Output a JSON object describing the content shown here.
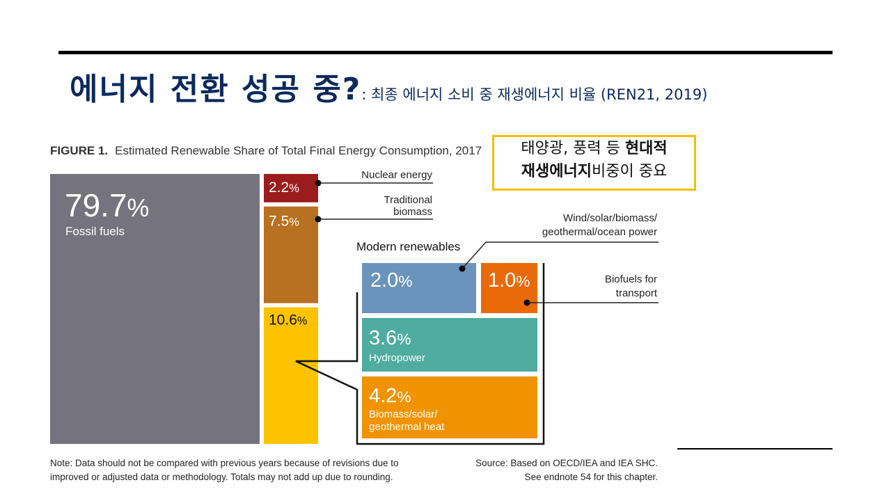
{
  "slide": {
    "title_main": "에너지 전환 성공 중?",
    "title_sub": ": 최종 에너지 소비 중 재생에너지 비율 (REN21, 2019)",
    "callout_line1_regular": "태양광, 풍력 등 ",
    "callout_line1_bold": "현대적",
    "callout_line2_bold": "재생에너지",
    "callout_line2_regular": "비중이 중요"
  },
  "figure": {
    "label": "FIGURE 1.",
    "title": "Estimated Renewable Share of Total Final Energy Consumption, 2017",
    "note_line1": "Note: Data should not be compared with previous years because of revisions due to",
    "note_line2": "improved or adjusted data or methodology. Totals may not add up due to rounding.",
    "source_line1": "Source: Based on OECD/IEA and IEA SHC.",
    "source_line2": "See endnote 54 for this chapter."
  },
  "chart_data": {
    "type": "treemap",
    "title": "Estimated Renewable Share of Total Final Energy Consumption, 2017",
    "unit": "%",
    "items": [
      {
        "key": "fossil",
        "name": "Fossil fuels",
        "value": 79.7,
        "label": "79.7",
        "color": "#75737d"
      },
      {
        "key": "nuclear",
        "name": "Nuclear energy",
        "value": 2.2,
        "label": "2.2",
        "color": "#9b1c1c"
      },
      {
        "key": "traditional",
        "name": "Traditional biomass",
        "value": 7.5,
        "label": "7.5",
        "color": "#b87021"
      },
      {
        "key": "modern",
        "name": "Modern renewables",
        "value": 10.6,
        "label": "10.6",
        "color": "#fdc300",
        "children": [
          {
            "key": "power",
            "name": "Wind/solar/biomass/geothermal/ocean power",
            "value": 2.0,
            "label": "2.0",
            "color": "#6a94bb"
          },
          {
            "key": "biofuels",
            "name": "Biofuels for transport",
            "value": 1.0,
            "label": "1.0",
            "color": "#ea6a09"
          },
          {
            "key": "hydro",
            "name": "Hydropower",
            "value": 3.6,
            "label": "3.6",
            "color": "#4eaca0"
          },
          {
            "key": "heat",
            "name": "Biomass/solar/geothermal heat",
            "value": 4.2,
            "label": "4.2",
            "color": "#f19300"
          }
        ]
      }
    ],
    "annotations": {
      "nuclear": [
        "Nuclear energy"
      ],
      "traditional": [
        "Traditional",
        "biomass"
      ],
      "modern_header": "Modern renewables",
      "power": [
        "Wind/solar/biomass/",
        "geothermal/ocean power"
      ],
      "biofuels": [
        "Biofuels for",
        "transport"
      ],
      "hydro_inline": "Hydropower",
      "heat_inline": [
        "Biomass/solar/",
        "geothermal heat"
      ],
      "fossil_inline": "Fossil fuels"
    }
  }
}
